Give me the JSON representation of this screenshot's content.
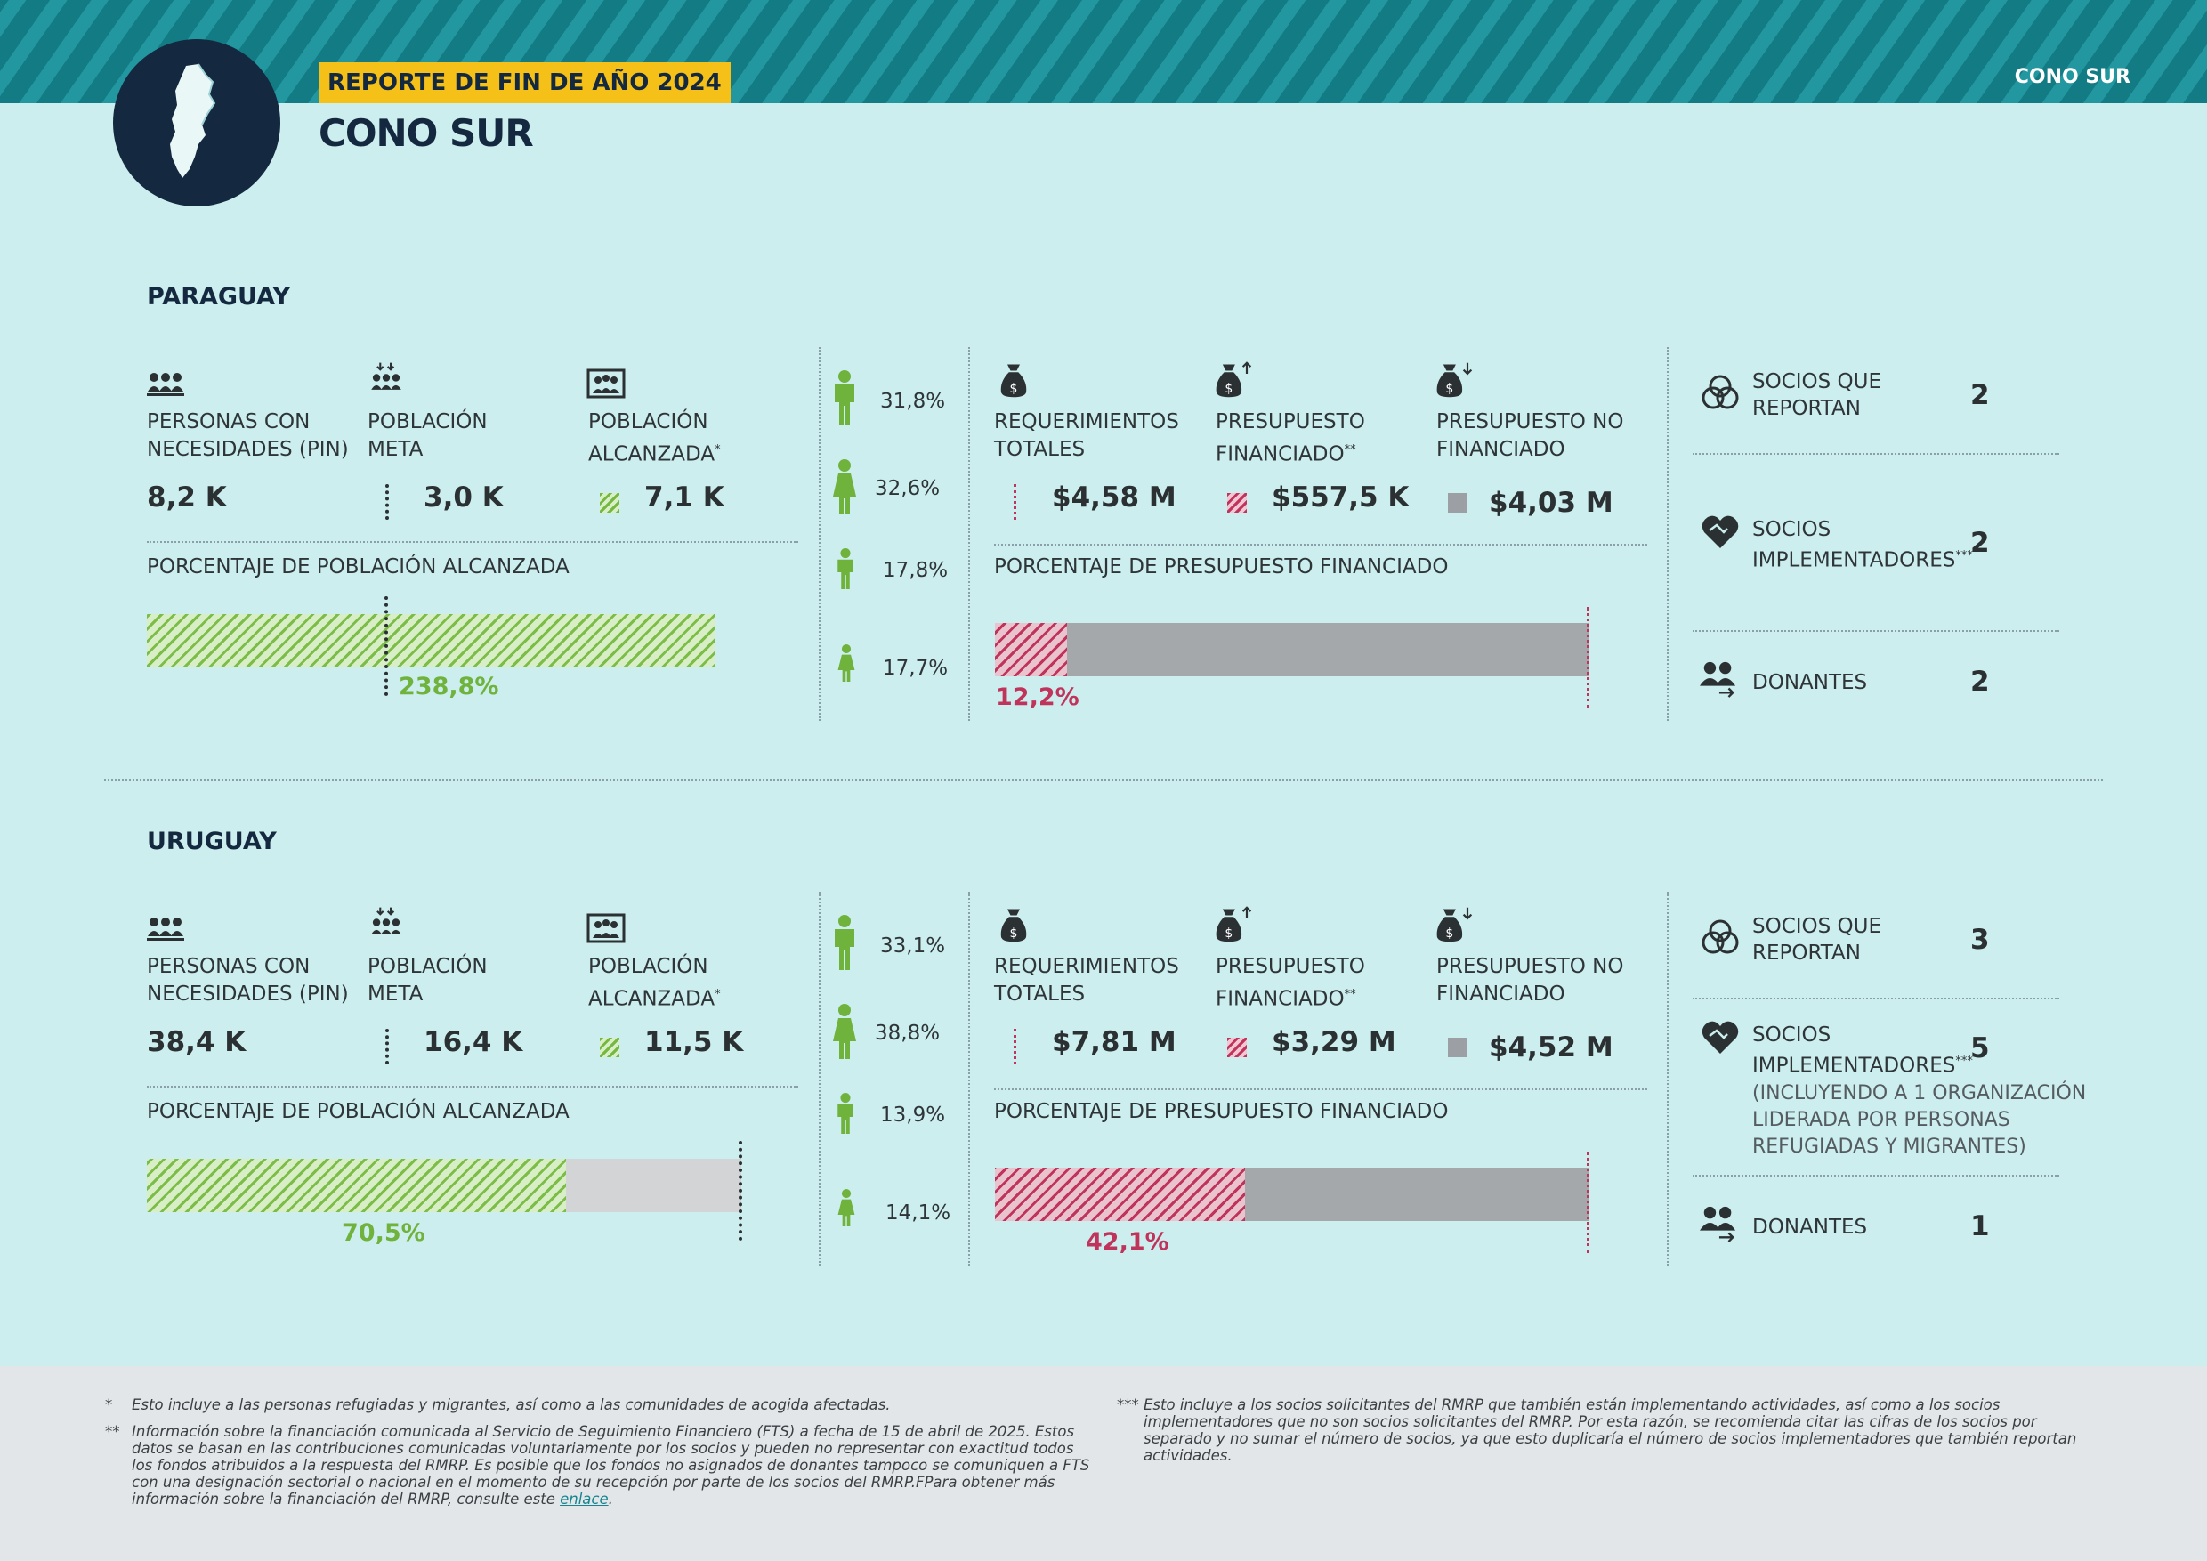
{
  "header": {
    "region_tag": "CONO SUR",
    "year_badge": "REPORTE DE FIN DE AÑO 2024",
    "title": "CONO SUR"
  },
  "labels": {
    "pin": "PERSONAS CON\nNECESIDADES (PIN)",
    "target": "POBLACIÓN\nMETA",
    "reached": "POBLACIÓN\nALCANZADA",
    "reached_pct": "PORCENTAJE DE POBLACIÓN ALCANZADA",
    "req_total": "REQUERIMIENTOS\nTOTALES",
    "funded": "PRESUPUESTO\nFINANCIADO",
    "unfunded": "PRESUPUESTO NO\nFINANCIADO",
    "funded_pct": "PORCENTAJE DE PRESUPUESTO FINANCIADO",
    "partners_reporting": "SOCIOS QUE\nREPORTAN",
    "partners_implementing": "SOCIOS\nIMPLEMENTADORES",
    "donors": "DONANTES",
    "sup1": "*",
    "sup2": "**",
    "sup3": "***"
  },
  "countries": [
    {
      "name": "PARAGUAY",
      "pin": "8,2 K",
      "target": "3,0 K",
      "reached": "7,1 K",
      "reached_pct": "238,8%",
      "reached_pct_value": 238.8,
      "demographics": [
        "31,8%",
        "32,6%",
        "17,8%",
        "17,7%"
      ],
      "requirements": "$4,58 M",
      "funded": "$557,5 K",
      "unfunded": "$4,03 M",
      "funded_pct": "12,2%",
      "funded_pct_value": 12.2,
      "partners_reporting": "2",
      "partners_implementing": "2",
      "partners_note": "",
      "donors": "2"
    },
    {
      "name": "URUGUAY",
      "pin": "38,4 K",
      "target": "16,4 K",
      "reached": "11,5 K",
      "reached_pct": "70,5%",
      "reached_pct_value": 70.5,
      "demographics": [
        "33,1%",
        "38,8%",
        "13,9%",
        "14,1%"
      ],
      "requirements": "$7,81 M",
      "funded": "$3,29 M",
      "unfunded": "$4,52 M",
      "funded_pct": "42,1%",
      "funded_pct_value": 42.1,
      "partners_reporting": "3",
      "partners_implementing": "5",
      "partners_note": "(INCLUYENDO A 1 ORGANIZACIÓN\nLIDERADA POR PERSONAS\nREFUGIADAS Y MIGRANTES)",
      "donors": "1"
    }
  ],
  "footnotes": {
    "f1_mark": "*",
    "f1": "Esto incluye a las personas refugiadas y migrantes, así como a las comunidades de acogida afectadas.",
    "f2_mark": "**",
    "f2": "Información sobre la financiación comunicada al Servicio de Seguimiento Financiero (FTS) a fecha de 15 de abril de 2025. Estos datos se basan en las contribuciones comunicadas voluntariamente por los socios y pueden no representar con exactitud todos los fondos atribuidos a la respuesta del RMRP. Es posible que los fondos no asignados de donantes tampoco se comuniquen a FTS con una designación sectorial o nacional en el momento de su recepción por parte de los socios del RMRP.FPara obtener más información sobre la financiación del RMRP, consulte este",
    "f2_link": "enlace",
    "f2_end": ".",
    "f3_mark": "***",
    "f3": "Esto incluye a los socios solicitantes del RMRP que también están implementando actividades, así como a los socios implementadores que no son socios solicitantes del RMRP. Por esta razón, se recomienda citar las cifras de los socios por separado y no sumar el número de socios, ya que esto duplicaría el número de socios implementadores que también reportan actividades."
  },
  "colors": {
    "background": "#cdeeee",
    "navy": "#14283f",
    "yellow": "#f5c119",
    "green": "#6fb23c",
    "red": "#c0345c",
    "gray": "#9c9fa3"
  }
}
